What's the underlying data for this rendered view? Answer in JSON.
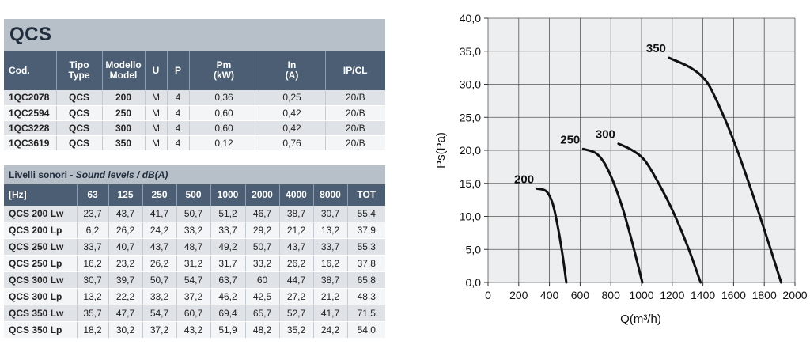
{
  "title": "QCS",
  "models_table": {
    "headers": [
      "Cod.",
      "Tipo\nType",
      "Modello\nModel",
      "U",
      "P",
      "Pm\n(kW)",
      "In\n(A)",
      "IP/CL"
    ],
    "rows": [
      [
        "1QC2078",
        "QCS",
        "200",
        "M",
        "4",
        "0,36",
        "0,25",
        "20/B"
      ],
      [
        "1QC2594",
        "QCS",
        "250",
        "M",
        "4",
        "0,60",
        "0,42",
        "20/B"
      ],
      [
        "1QC3228",
        "QCS",
        "300",
        "M",
        "4",
        "0,60",
        "0,42",
        "20/B"
      ],
      [
        "1QC3619",
        "QCS",
        "350",
        "M",
        "4",
        "0,12",
        "0,76",
        "20/B"
      ]
    ]
  },
  "sound_section": {
    "title_plain": "Livelli sonori - ",
    "title_italic": "Sound levels / dB(A)"
  },
  "sound_table": {
    "headers": [
      "[Hz]",
      "63",
      "125",
      "250",
      "500",
      "1000",
      "2000",
      "4000",
      "8000",
      "TOT"
    ],
    "rows": [
      [
        "QCS 200 Lw",
        "23,7",
        "43,7",
        "41,7",
        "50,7",
        "51,2",
        "46,7",
        "38,7",
        "30,7",
        "55,4"
      ],
      [
        "QCS 200 Lp",
        "6,2",
        "26,2",
        "24,2",
        "33,2",
        "33,7",
        "29,2",
        "21,2",
        "13,2",
        "37,9"
      ],
      [
        "QCS 250 Lw",
        "33,7",
        "40,7",
        "43,7",
        "48,7",
        "49,2",
        "50,7",
        "43,7",
        "33,7",
        "55,3"
      ],
      [
        "QCS 250 Lp",
        "16,2",
        "23,2",
        "26,2",
        "31,2",
        "31,7",
        "33,2",
        "26,2",
        "16,2",
        "37,8"
      ],
      [
        "QCS 300 Lw",
        "30,7",
        "39,7",
        "50,7",
        "54,7",
        "63,7",
        "60",
        "44,7",
        "38,7",
        "65,8"
      ],
      [
        "QCS 300 Lp",
        "13,2",
        "22,2",
        "33,2",
        "37,2",
        "46,2",
        "42,5",
        "27,2",
        "21,2",
        "48,3"
      ],
      [
        "QCS 350 Lw",
        "35,7",
        "47,7",
        "54,7",
        "60,7",
        "69,4",
        "65,7",
        "52,7",
        "41,7",
        "71,5"
      ],
      [
        "QCS 350 Lp",
        "18,2",
        "30,2",
        "37,2",
        "43,2",
        "51,9",
        "48,2",
        "35,2",
        "24,2",
        "54,0"
      ]
    ]
  },
  "chart_data": {
    "type": "line",
    "title": "",
    "xlabel": "Q(m³/h)",
    "ylabel": "Ps(Pa)",
    "xlim": [
      0,
      2000
    ],
    "ylim": [
      0,
      40
    ],
    "xticks": [
      "0",
      "200",
      "400",
      "600",
      "800",
      "1000",
      "1200",
      "1400",
      "1600",
      "1800",
      "2000"
    ],
    "yticks": [
      "0,0",
      "5,0",
      "10,0",
      "15,0",
      "20,0",
      "25,0",
      "30,0",
      "35,0",
      "40,0"
    ],
    "grid": true,
    "series": [
      {
        "name": "200",
        "x": [
          320,
          380,
          420,
          450,
          480,
          510
        ],
        "y": [
          14.2,
          13.8,
          12.0,
          9.0,
          5.0,
          0
        ]
      },
      {
        "name": "250",
        "x": [
          620,
          700,
          760,
          820,
          880,
          940,
          1005
        ],
        "y": [
          20.2,
          19.6,
          18.0,
          15.0,
          11.0,
          6.0,
          0
        ]
      },
      {
        "name": "300",
        "x": [
          850,
          940,
          1020,
          1100,
          1200,
          1300,
          1385
        ],
        "y": [
          21.0,
          20.0,
          18.5,
          15.5,
          11.0,
          5.5,
          0
        ]
      },
      {
        "name": "350",
        "x": [
          1180,
          1320,
          1420,
          1500,
          1600,
          1700,
          1800,
          1910
        ],
        "y": [
          34.0,
          32.5,
          30.5,
          27.0,
          21.5,
          15.0,
          8.0,
          0
        ]
      }
    ]
  }
}
